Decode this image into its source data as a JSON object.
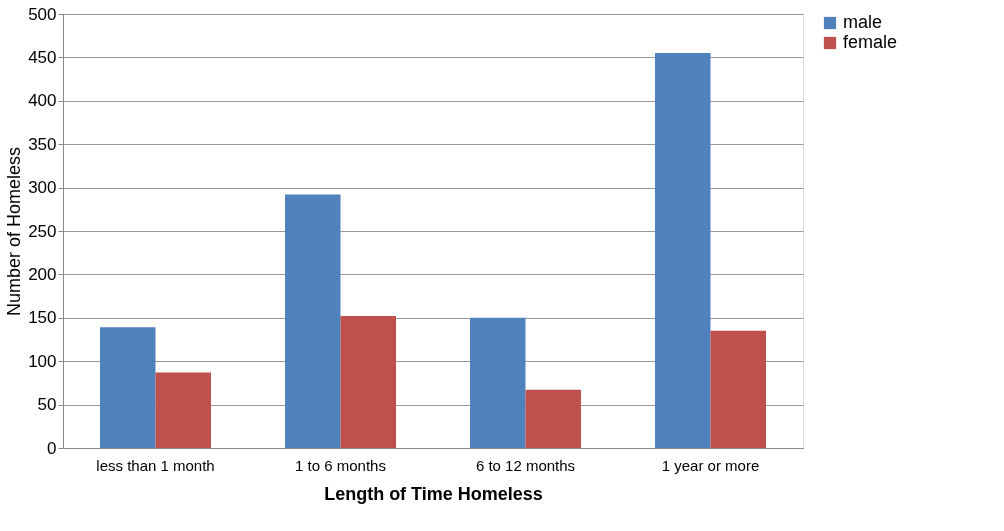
{
  "chart_data": {
    "type": "bar",
    "xlabel": "Length of Time Homeless",
    "ylabel": "Number of Homeless",
    "categories": [
      "less than 1 month",
      "1 to 6 months",
      "6 to 12 months",
      "1 year or more"
    ],
    "series": [
      {
        "name": "male",
        "color": "#4f81bd",
        "values": [
          139,
          292,
          150,
          455
        ]
      },
      {
        "name": "female",
        "color": "#c0504d",
        "values": [
          87,
          152,
          67,
          135
        ]
      }
    ],
    "ylim": [
      0,
      500
    ],
    "yticks": [
      0,
      50,
      100,
      150,
      200,
      250,
      300,
      350,
      400,
      450,
      500
    ],
    "grid": "y",
    "legend": "right"
  }
}
